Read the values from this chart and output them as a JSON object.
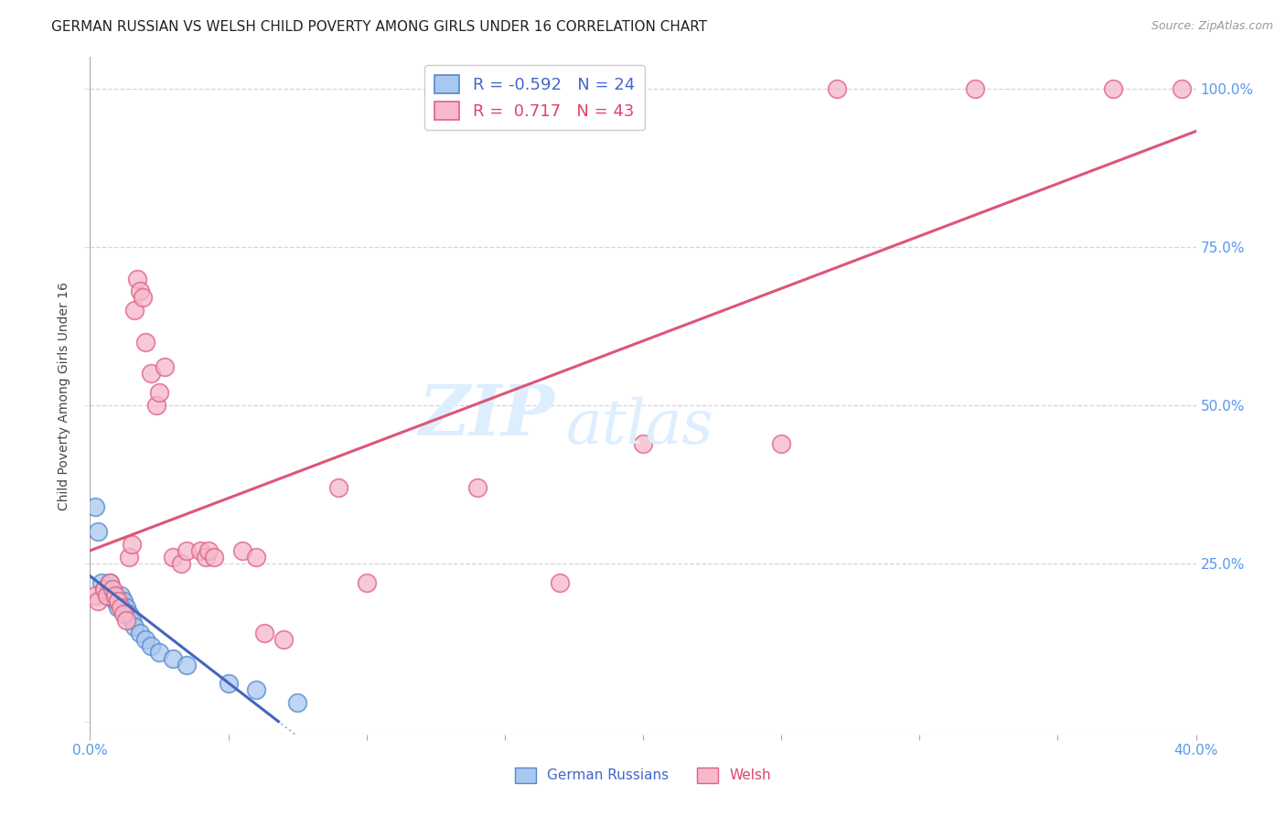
{
  "title": "GERMAN RUSSIAN VS WELSH CHILD POVERTY AMONG GIRLS UNDER 16 CORRELATION CHART",
  "source": "Source: ZipAtlas.com",
  "ylabel": "Child Poverty Among Girls Under 16",
  "x_min": 0.0,
  "x_max": 0.4,
  "y_min": -0.02,
  "y_max": 1.05,
  "legend_r_blue": "-0.592",
  "legend_n_blue": "24",
  "legend_r_pink": "0.717",
  "legend_n_pink": "43",
  "watermark_zip": "ZIP",
  "watermark_atlas": "atlas",
  "blue_scatter": [
    [
      0.002,
      0.34
    ],
    [
      0.003,
      0.3
    ],
    [
      0.004,
      0.22
    ],
    [
      0.005,
      0.21
    ],
    [
      0.006,
      0.2
    ],
    [
      0.007,
      0.22
    ],
    [
      0.008,
      0.2
    ],
    [
      0.009,
      0.19
    ],
    [
      0.01,
      0.18
    ],
    [
      0.011,
      0.2
    ],
    [
      0.012,
      0.19
    ],
    [
      0.013,
      0.18
    ],
    [
      0.014,
      0.17
    ],
    [
      0.015,
      0.16
    ],
    [
      0.016,
      0.15
    ],
    [
      0.018,
      0.14
    ],
    [
      0.02,
      0.13
    ],
    [
      0.022,
      0.12
    ],
    [
      0.025,
      0.11
    ],
    [
      0.03,
      0.1
    ],
    [
      0.035,
      0.09
    ],
    [
      0.05,
      0.06
    ],
    [
      0.06,
      0.05
    ],
    [
      0.075,
      0.03
    ]
  ],
  "pink_scatter": [
    [
      0.002,
      0.2
    ],
    [
      0.003,
      0.19
    ],
    [
      0.005,
      0.21
    ],
    [
      0.006,
      0.2
    ],
    [
      0.007,
      0.22
    ],
    [
      0.008,
      0.21
    ],
    [
      0.009,
      0.2
    ],
    [
      0.01,
      0.19
    ],
    [
      0.011,
      0.18
    ],
    [
      0.012,
      0.17
    ],
    [
      0.013,
      0.16
    ],
    [
      0.014,
      0.26
    ],
    [
      0.015,
      0.28
    ],
    [
      0.016,
      0.65
    ],
    [
      0.017,
      0.7
    ],
    [
      0.018,
      0.68
    ],
    [
      0.019,
      0.67
    ],
    [
      0.02,
      0.6
    ],
    [
      0.022,
      0.55
    ],
    [
      0.024,
      0.5
    ],
    [
      0.025,
      0.52
    ],
    [
      0.027,
      0.56
    ],
    [
      0.03,
      0.26
    ],
    [
      0.033,
      0.25
    ],
    [
      0.035,
      0.27
    ],
    [
      0.04,
      0.27
    ],
    [
      0.042,
      0.26
    ],
    [
      0.043,
      0.27
    ],
    [
      0.045,
      0.26
    ],
    [
      0.055,
      0.27
    ],
    [
      0.06,
      0.26
    ],
    [
      0.063,
      0.14
    ],
    [
      0.07,
      0.13
    ],
    [
      0.09,
      0.37
    ],
    [
      0.1,
      0.22
    ],
    [
      0.14,
      0.37
    ],
    [
      0.17,
      0.22
    ],
    [
      0.2,
      0.44
    ],
    [
      0.25,
      0.44
    ],
    [
      0.27,
      1.0
    ],
    [
      0.32,
      1.0
    ],
    [
      0.37,
      1.0
    ],
    [
      0.395,
      1.0
    ]
  ],
  "blue_color": "#a8c8f0",
  "pink_color": "#f5b8cc",
  "blue_edge_color": "#5588cc",
  "pink_edge_color": "#e06080",
  "blue_line_color": "#4466bb",
  "pink_line_color": "#dd5577",
  "grid_color": "#cccccc",
  "background_color": "#ffffff",
  "title_color": "#222222",
  "axis_label_color": "#444444",
  "tick_color": "#5599ee",
  "watermark_color": "#ddeeff"
}
